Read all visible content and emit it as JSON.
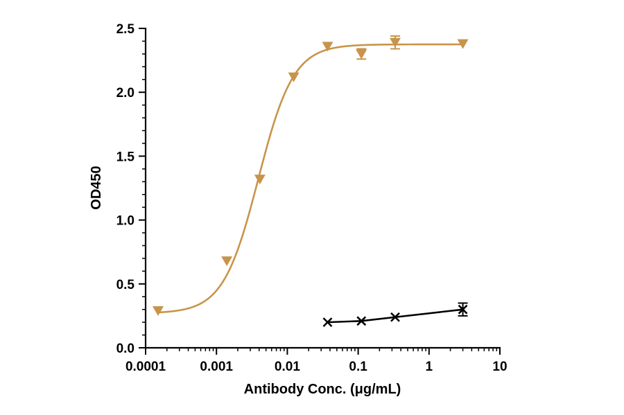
{
  "chart_data": {
    "type": "scatter",
    "xscale": "log",
    "xlabel": "Antibody Conc. (μg/mL)",
    "ylabel": "OD450",
    "xlim": [
      0.0001,
      10
    ],
    "ylim": [
      0,
      2.5
    ],
    "xticks": [
      "0.0001",
      "0.001",
      "0.01",
      "0.1",
      "1",
      "10"
    ],
    "yticks": [
      "0.0",
      "0.5",
      "1.0",
      "1.5",
      "2.0",
      "2.5"
    ],
    "grid": false,
    "series": [
      {
        "marker": "triangle-down",
        "color": "#c8944a",
        "x": [
          0.00015,
          0.0014,
          0.0041,
          0.0123,
          0.037,
          0.111,
          0.333,
          3.0
        ],
        "y": [
          0.29,
          0.68,
          1.32,
          2.12,
          2.36,
          2.3,
          2.39,
          2.38
        ],
        "error": [
          0,
          0,
          0,
          0,
          0,
          0.04,
          0.05,
          0
        ],
        "fit": {
          "bottom": 0.27,
          "top": 2.375,
          "ec50": 0.0039,
          "hill": 1.75
        }
      },
      {
        "marker": "x",
        "color": "#000000",
        "x": [
          0.037,
          0.111,
          0.333,
          3.0
        ],
        "y": [
          0.2,
          0.21,
          0.24,
          0.3
        ],
        "error": [
          0,
          0,
          0,
          0.05
        ]
      }
    ]
  }
}
